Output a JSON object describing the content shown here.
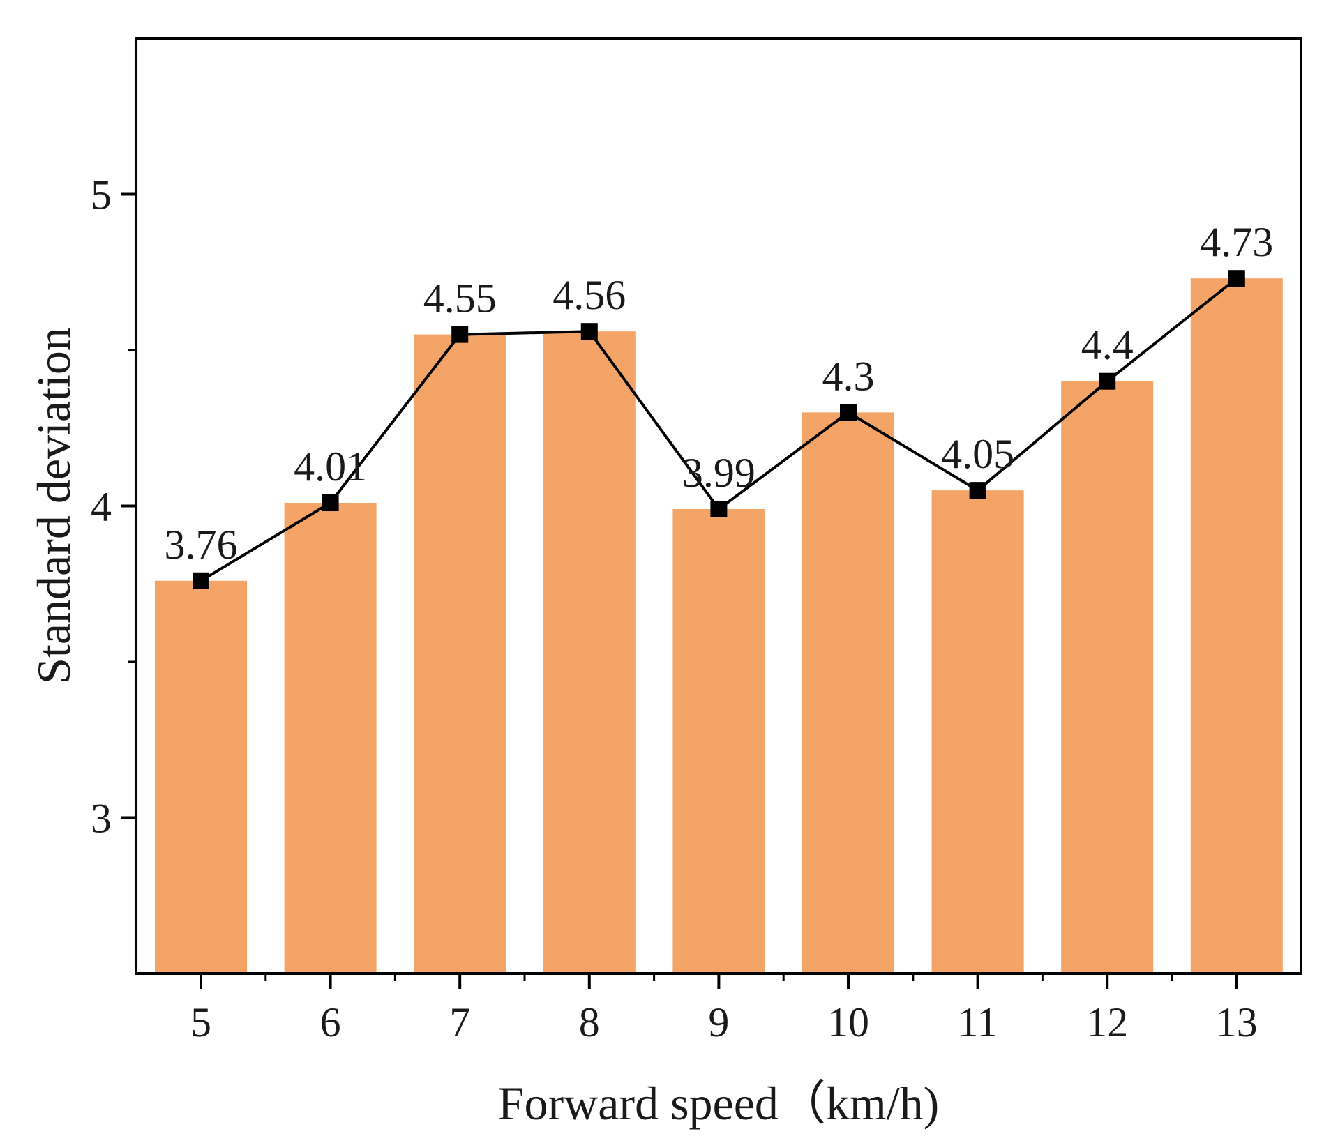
{
  "chart_data": {
    "type": "bar",
    "title": "",
    "xlabel": "Forward speed（km/h)",
    "ylabel": "Standard deviation",
    "categories": [
      "5",
      "6",
      "7",
      "8",
      "9",
      "10",
      "11",
      "12",
      "13"
    ],
    "series": [
      {
        "name": "Standard deviation",
        "values": [
          3.76,
          4.01,
          4.55,
          4.56,
          3.99,
          4.3,
          4.05,
          4.4,
          4.73
        ],
        "value_labels": [
          "3.76",
          "4.01",
          "4.55",
          "4.56",
          "3.99",
          "4.3",
          "4.05",
          "4.4",
          "4.73"
        ],
        "render": [
          "bar",
          "line",
          "square-markers"
        ]
      }
    ],
    "ylim": [
      2.5,
      5.5
    ],
    "yticks": [
      3,
      4,
      5
    ],
    "yticks_minor": [
      3.5,
      4.5
    ],
    "grid": false,
    "legend": "none",
    "colors": {
      "bar": "#F4A466",
      "line": "#000000",
      "marker": "#000000",
      "axis": "#000000"
    }
  }
}
